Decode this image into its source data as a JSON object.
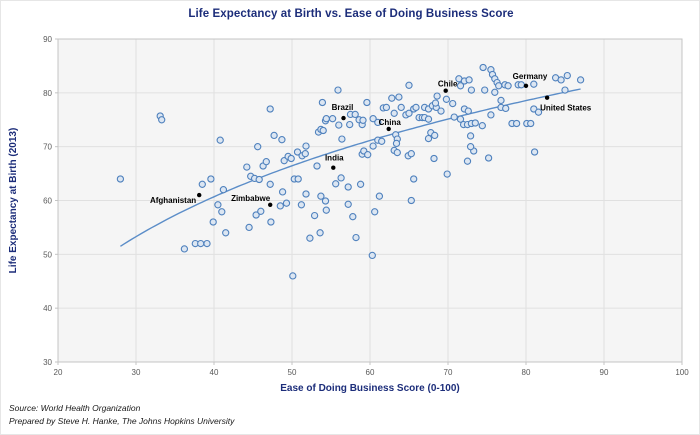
{
  "footer": {
    "source": "Source: World Health Organization",
    "prepared_by": "Prepared by Steve H. Hanke, The Johns Hopkins University"
  },
  "colors": {
    "title": "#1c2d7a",
    "axis_title": "#1c2d7a",
    "tick": "#595959",
    "gridline": "#e0e0e0",
    "plot_border": "#c4c4c4",
    "plot_bg": "#f5f5f5",
    "point_stroke": "#4f81bd",
    "point_fill": "#dce6f2",
    "labeled_point": "#000000",
    "trendline": "#5b8dc8",
    "source_text": "#1a1a1a"
  },
  "chart_data": {
    "type": "scatter",
    "title": "Life Expectancy at Birth vs. Ease of Doing Business Score",
    "xlabel": "Ease of Doing Business Score (0-100)",
    "ylabel": "Life Expectancy at Birth (2013)",
    "xlim": [
      20,
      100
    ],
    "ylim": [
      30,
      90
    ],
    "xticks": [
      20,
      30,
      40,
      50,
      60,
      70,
      80,
      90,
      100
    ],
    "yticks": [
      30,
      40,
      50,
      60,
      70,
      80,
      90
    ],
    "grid": true,
    "legend": "none",
    "series": [
      {
        "name": "countries",
        "marker": "open-circle",
        "color": "#4f81bd",
        "fill": "#dce6f2",
        "points": [
          [
            28,
            64
          ],
          [
            33.1,
            75.7
          ],
          [
            33.3,
            75
          ],
          [
            36.2,
            51
          ],
          [
            37.6,
            52
          ],
          [
            38.3,
            52
          ],
          [
            39.1,
            52
          ],
          [
            38.5,
            63
          ],
          [
            39.6,
            64
          ],
          [
            39.9,
            56
          ],
          [
            40.5,
            59.2
          ],
          [
            41,
            57.9
          ],
          [
            40.8,
            71.2
          ],
          [
            41.2,
            62
          ],
          [
            41.5,
            54
          ],
          [
            44.2,
            66.2
          ],
          [
            44.5,
            55
          ],
          [
            44.7,
            64.5
          ],
          [
            45.2,
            64.1
          ],
          [
            45.4,
            57.3
          ],
          [
            45.6,
            70
          ],
          [
            45.8,
            63.9
          ],
          [
            46,
            58
          ],
          [
            46.3,
            66.4
          ],
          [
            46.7,
            67.2
          ],
          [
            47.2,
            63
          ],
          [
            47.2,
            77
          ],
          [
            47.3,
            56
          ],
          [
            47.7,
            72.1
          ],
          [
            48.5,
            59
          ],
          [
            48.7,
            71.3
          ],
          [
            48.8,
            61.6
          ],
          [
            49.3,
            59.5
          ],
          [
            49,
            67.4
          ],
          [
            49.5,
            68.2
          ],
          [
            49.9,
            67.8
          ],
          [
            50.1,
            46
          ],
          [
            50.3,
            64
          ],
          [
            50.8,
            64
          ],
          [
            50.7,
            69
          ],
          [
            51.2,
            59.2
          ],
          [
            51.3,
            68.3
          ],
          [
            51.7,
            68.7
          ],
          [
            51.8,
            61.2
          ],
          [
            51.8,
            70.1
          ],
          [
            52.3,
            53
          ],
          [
            52.9,
            57.2
          ],
          [
            53.2,
            66.4
          ],
          [
            53.4,
            72.7
          ],
          [
            53.6,
            54
          ],
          [
            53.7,
            60.8
          ],
          [
            53.7,
            73.2
          ],
          [
            53.9,
            78.2
          ],
          [
            54,
            73
          ],
          [
            54.3,
            74.8
          ],
          [
            54.3,
            59.9
          ],
          [
            54.4,
            58.2
          ],
          [
            54.4,
            75.2
          ],
          [
            55.2,
            75.2
          ],
          [
            55.6,
            63.1
          ],
          [
            55.9,
            80.5
          ],
          [
            56,
            74
          ],
          [
            56.3,
            64.2
          ],
          [
            56.4,
            71.4
          ],
          [
            57.2,
            59.3
          ],
          [
            57.2,
            62.5
          ],
          [
            57.5,
            76
          ],
          [
            57.4,
            74.1
          ],
          [
            57.8,
            57
          ],
          [
            58.1,
            76
          ],
          [
            58.2,
            53.1
          ],
          [
            58.6,
            75
          ],
          [
            58.8,
            63
          ],
          [
            59,
            74.1
          ],
          [
            59.1,
            74.9
          ],
          [
            59,
            68.6
          ],
          [
            59.2,
            69.2
          ],
          [
            59.6,
            78.2
          ],
          [
            59.7,
            68.5
          ],
          [
            60.3,
            49.8
          ],
          [
            60.4,
            70.1
          ],
          [
            60.4,
            75.2
          ],
          [
            60.6,
            57.9
          ],
          [
            61,
            71.2
          ],
          [
            61,
            74.5
          ],
          [
            61.2,
            60.8
          ],
          [
            61.5,
            71
          ],
          [
            61.7,
            77.2
          ],
          [
            62.1,
            77.3
          ],
          [
            62.8,
            79
          ],
          [
            63.1,
            76.2
          ],
          [
            63.3,
            72.2
          ],
          [
            63.5,
            71.4
          ],
          [
            63.4,
            70.6
          ],
          [
            63.1,
            69.3
          ],
          [
            63.5,
            68.9
          ],
          [
            63.7,
            79.2
          ],
          [
            64,
            77.3
          ],
          [
            64.6,
            75.9
          ],
          [
            65,
            76.2
          ],
          [
            64.9,
            68.3
          ],
          [
            65.3,
            68.7
          ],
          [
            65,
            81.4
          ],
          [
            65.3,
            60
          ],
          [
            65.6,
            64
          ],
          [
            65.6,
            77
          ],
          [
            65.9,
            77.3
          ],
          [
            66.3,
            75.4
          ],
          [
            66.7,
            75.4
          ],
          [
            67,
            77.3
          ],
          [
            67.5,
            77
          ],
          [
            67,
            75.4
          ],
          [
            67.5,
            75.1
          ],
          [
            67.5,
            71.5
          ],
          [
            67.8,
            72.6
          ],
          [
            68.3,
            72.1
          ],
          [
            68,
            77.6
          ],
          [
            68.5,
            77.3
          ],
          [
            68.2,
            67.8
          ],
          [
            68.4,
            78.1
          ],
          [
            68.6,
            79.4
          ],
          [
            69.1,
            76.6
          ],
          [
            69.8,
            78.8
          ],
          [
            69.9,
            64.9
          ],
          [
            70.6,
            78
          ],
          [
            70.8,
            75.5
          ],
          [
            71.6,
            75.1
          ],
          [
            71.4,
            82.6
          ],
          [
            72.1,
            82.2
          ],
          [
            72.7,
            82.4
          ],
          [
            71.6,
            81.3
          ],
          [
            72.1,
            77
          ],
          [
            72.6,
            76.6
          ],
          [
            72,
            74.1
          ],
          [
            72.5,
            74.1
          ],
          [
            73,
            74.3
          ],
          [
            73.5,
            74.4
          ],
          [
            72.9,
            72
          ],
          [
            73.3,
            69.2
          ],
          [
            72.9,
            70
          ],
          [
            72.5,
            67.3
          ],
          [
            73,
            80.5
          ],
          [
            74.4,
            73.9
          ],
          [
            74.5,
            84.7
          ],
          [
            74.7,
            80.5
          ],
          [
            75.2,
            67.9
          ],
          [
            75.5,
            84.3
          ],
          [
            75.7,
            83.4
          ],
          [
            76,
            82.6
          ],
          [
            76.3,
            81.9
          ],
          [
            76.5,
            81.3
          ],
          [
            75.5,
            75.9
          ],
          [
            76,
            80.1
          ],
          [
            76.8,
            78.6
          ],
          [
            76.8,
            77.3
          ],
          [
            77.4,
            77.1
          ],
          [
            77.3,
            81.5
          ],
          [
            77.7,
            81.3
          ],
          [
            78.2,
            74.3
          ],
          [
            78.8,
            74.3
          ],
          [
            79,
            81.5
          ],
          [
            79.4,
            81.5
          ],
          [
            80.1,
            74.3
          ],
          [
            80.6,
            74.3
          ],
          [
            81,
            81.6
          ],
          [
            81,
            77
          ],
          [
            81.6,
            76.4
          ],
          [
            81.1,
            69
          ],
          [
            83.8,
            82.8
          ],
          [
            84.5,
            82.4
          ],
          [
            85.3,
            83.2
          ],
          [
            85,
            80.5
          ],
          [
            87,
            82.4
          ]
        ]
      },
      {
        "name": "labeled-countries",
        "marker": "filled-dot",
        "color": "#000000",
        "points": [
          {
            "label": "Afghanistan",
            "x": 38.1,
            "y": 61,
            "anchor": "end",
            "dx": -3,
            "dy": 8
          },
          {
            "label": "Zimbabwe",
            "x": 47.2,
            "y": 59.2,
            "anchor": "end",
            "dx": 0,
            "dy": -4
          },
          {
            "label": "India",
            "x": 55.3,
            "y": 66.1,
            "anchor": "middle",
            "dx": 1,
            "dy": -7
          },
          {
            "label": "China",
            "x": 62.4,
            "y": 73.3,
            "anchor": "middle",
            "dx": 1,
            "dy": -4
          },
          {
            "label": "Brazil",
            "x": 56.6,
            "y": 75.3,
            "anchor": "middle",
            "dx": -1,
            "dy": -8
          },
          {
            "label": "Chile",
            "x": 69.7,
            "y": 80.4,
            "anchor": "middle",
            "dx": 2,
            "dy": -4
          },
          {
            "label": "Germany",
            "x": 80,
            "y": 81.3,
            "anchor": "middle",
            "dx": 4,
            "dy": -7
          },
          {
            "label": "United States",
            "x": 82.7,
            "y": 79.1,
            "anchor": "start",
            "dx": -7,
            "dy": 13
          }
        ]
      }
    ],
    "trendline": {
      "type": "logarithmic",
      "formula": "y = -34.37 + 25.77*ln(x)",
      "a": -34.37,
      "b": 25.77,
      "x_start": 28,
      "x_end": 87.3,
      "color": "#5b8dc8"
    }
  }
}
